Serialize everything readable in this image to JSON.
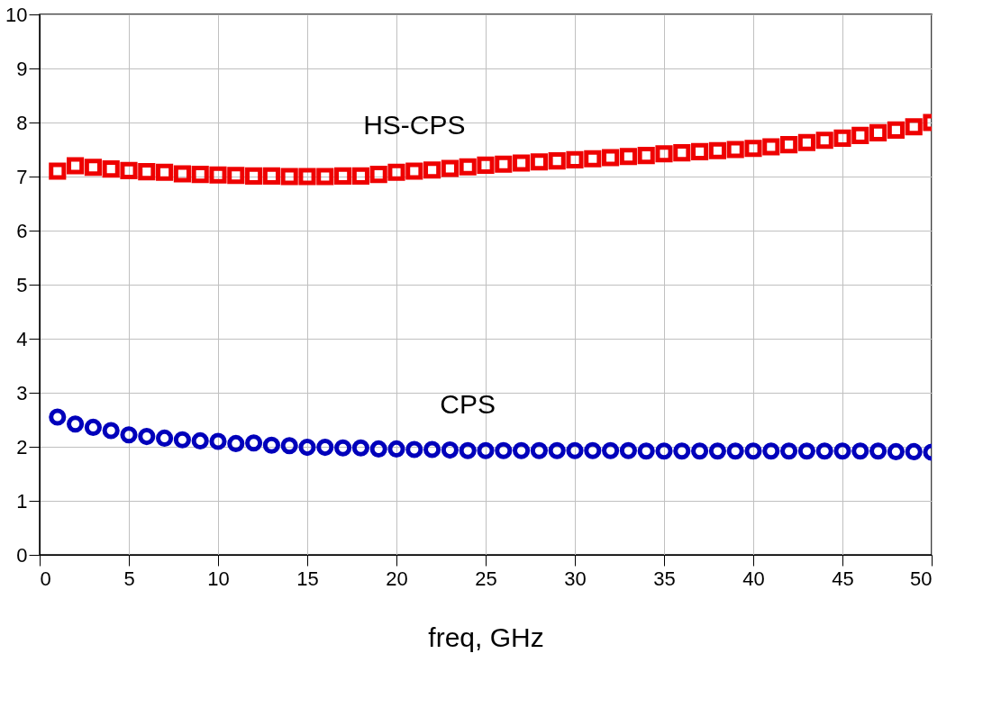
{
  "chart_data": {
    "type": "scatter",
    "xlabel": "freq, GHz",
    "x": [
      1,
      2,
      3,
      4,
      5,
      6,
      7,
      8,
      9,
      10,
      11,
      12,
      13,
      14,
      15,
      16,
      17,
      18,
      19,
      20,
      21,
      22,
      23,
      24,
      25,
      26,
      27,
      28,
      29,
      30,
      31,
      32,
      33,
      34,
      35,
      36,
      37,
      38,
      39,
      40,
      41,
      42,
      43,
      44,
      45,
      46,
      47,
      48,
      49,
      50
    ],
    "series": [
      {
        "name": "HS-CPS",
        "color": "#ee0000",
        "marker": "square",
        "values": [
          7.1,
          7.2,
          7.17,
          7.14,
          7.11,
          7.09,
          7.08,
          7.05,
          7.04,
          7.03,
          7.02,
          7.01,
          7.01,
          7.0,
          7.0,
          7.0,
          7.01,
          7.01,
          7.04,
          7.08,
          7.1,
          7.12,
          7.15,
          7.18,
          7.21,
          7.23,
          7.25,
          7.27,
          7.29,
          7.31,
          7.33,
          7.35,
          7.37,
          7.39,
          7.42,
          7.44,
          7.46,
          7.48,
          7.5,
          7.52,
          7.55,
          7.59,
          7.63,
          7.67,
          7.71,
          7.76,
          7.81,
          7.86,
          7.92,
          8.0
        ]
      },
      {
        "name": "CPS",
        "color": "#0000bb",
        "marker": "circle",
        "values": [
          2.55,
          2.42,
          2.36,
          2.3,
          2.22,
          2.19,
          2.16,
          2.13,
          2.11,
          2.1,
          2.06,
          2.07,
          2.03,
          2.02,
          1.99,
          1.99,
          1.98,
          1.98,
          1.96,
          1.96,
          1.95,
          1.95,
          1.94,
          1.93,
          1.93,
          1.93,
          1.93,
          1.93,
          1.93,
          1.93,
          1.93,
          1.93,
          1.93,
          1.92,
          1.92,
          1.92,
          1.92,
          1.92,
          1.92,
          1.92,
          1.92,
          1.92,
          1.92,
          1.92,
          1.92,
          1.92,
          1.92,
          1.91,
          1.91,
          1.9
        ]
      }
    ],
    "xlim": [
      0,
      50
    ],
    "xticks": [
      0,
      5,
      10,
      15,
      20,
      25,
      30,
      35,
      40,
      45,
      50
    ],
    "ylim": [
      0,
      10
    ],
    "yticks": [
      0,
      1,
      2,
      3,
      4,
      5,
      6,
      7,
      8,
      9,
      10
    ],
    "grid": true
  }
}
